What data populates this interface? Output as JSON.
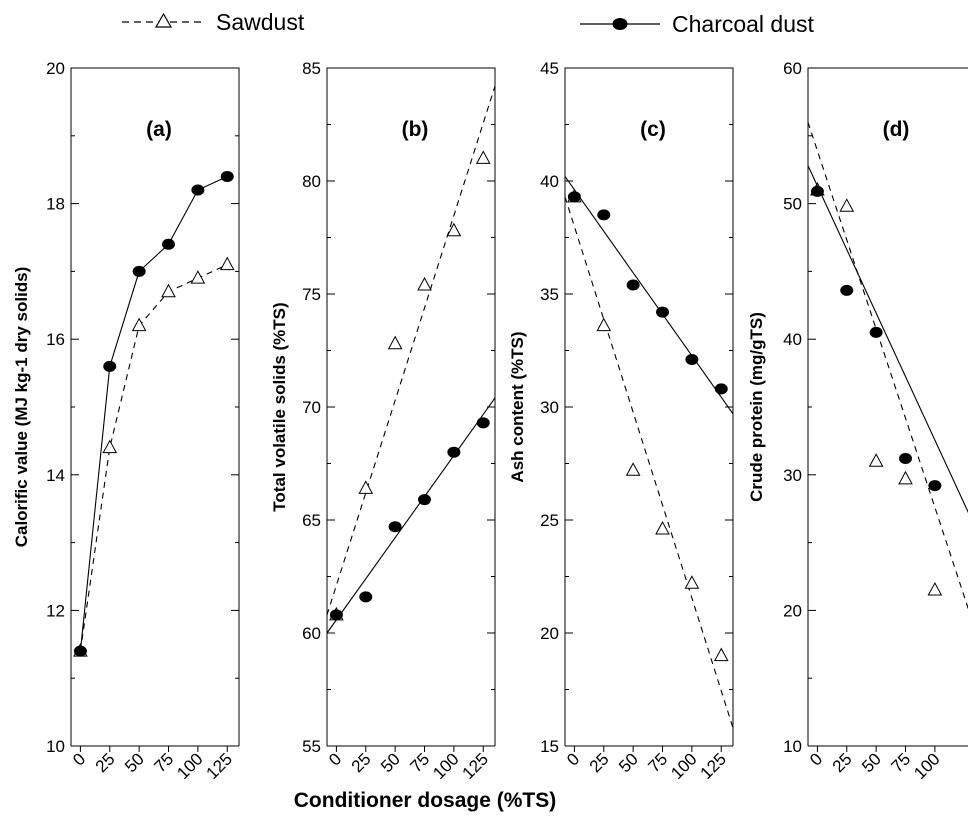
{
  "legend": {
    "sawdust": "Sawdust",
    "charcoal": "Charcoal dust"
  },
  "xlabel_shared": "Conditioner dosage (%TS)",
  "chart_data": [
    {
      "type": "line",
      "panel": "(a)",
      "ylabel": "Calorific value (MJ kg-1 dry solids)",
      "xlabel": "",
      "xlim": [
        -8,
        135
      ],
      "ylim": [
        10,
        20
      ],
      "xticks": [
        0,
        25,
        50,
        75,
        100,
        125
      ],
      "yticks": [
        10,
        12,
        14,
        16,
        18,
        20
      ],
      "categories": [
        0,
        25,
        50,
        75,
        100,
        125
      ],
      "series": [
        {
          "name": "Sawdust",
          "style": "dashed",
          "marker": "triangle",
          "x": [
            0,
            25,
            50,
            75,
            100,
            125
          ],
          "values": [
            11.4,
            14.4,
            16.2,
            16.7,
            16.9,
            17.1
          ],
          "fit": null
        },
        {
          "name": "Charcoal dust",
          "style": "solid",
          "marker": "circle",
          "x": [
            0,
            25,
            50,
            75,
            100,
            125
          ],
          "values": [
            11.4,
            15.6,
            17.0,
            17.4,
            18.2,
            18.4
          ],
          "fit": null
        }
      ]
    },
    {
      "type": "scatter",
      "panel": "(b)",
      "ylabel": "Total volatile solids (%TS)",
      "xlabel": "",
      "xlim": [
        -8,
        135
      ],
      "ylim": [
        55,
        85
      ],
      "xticks": [
        0,
        25,
        50,
        75,
        100,
        125
      ],
      "yticks": [
        55,
        60,
        65,
        70,
        75,
        80,
        85
      ],
      "categories": [
        0,
        25,
        50,
        75,
        100,
        125
      ],
      "series": [
        {
          "name": "Sawdust",
          "style": "dashed",
          "marker": "triangle",
          "x": [
            0,
            25,
            50,
            75,
            100,
            125
          ],
          "values": [
            60.8,
            66.4,
            72.8,
            75.4,
            77.8,
            81.0
          ],
          "fit": [
            60.8,
            84.2
          ]
        },
        {
          "name": "Charcoal dust",
          "style": "solid",
          "marker": "circle",
          "x": [
            0,
            25,
            50,
            75,
            100,
            125
          ],
          "values": [
            60.8,
            61.6,
            64.7,
            65.9,
            68.0,
            69.3
          ],
          "fit": [
            60.0,
            70.4
          ]
        }
      ]
    },
    {
      "type": "scatter",
      "panel": "(c)",
      "ylabel": "Ash content (%TS)",
      "xlabel": "",
      "xlim": [
        -8,
        135
      ],
      "ylim": [
        15,
        45
      ],
      "xticks": [
        0,
        25,
        50,
        75,
        100,
        125
      ],
      "yticks": [
        15,
        20,
        25,
        30,
        35,
        40,
        45
      ],
      "categories": [
        0,
        25,
        50,
        75,
        100,
        125
      ],
      "series": [
        {
          "name": "Sawdust",
          "style": "dashed",
          "marker": "triangle",
          "x": [
            0,
            25,
            50,
            75,
            100,
            125
          ],
          "values": [
            39.3,
            33.6,
            27.2,
            24.6,
            22.2,
            19.0
          ],
          "fit": [
            39.3,
            15.8
          ]
        },
        {
          "name": "Charcoal dust",
          "style": "solid",
          "marker": "circle",
          "x": [
            0,
            25,
            50,
            75,
            100,
            125
          ],
          "values": [
            39.3,
            38.5,
            35.4,
            34.2,
            32.1,
            30.8
          ],
          "fit": [
            40.2,
            29.7
          ]
        }
      ]
    },
    {
      "type": "scatter",
      "panel": "(d)",
      "ylabel": "Crude protein (mg/gTS)",
      "xlabel": "",
      "xlim": [
        -8,
        135
      ],
      "ylim": [
        10,
        60
      ],
      "xticks": [
        0,
        25,
        50,
        75,
        100
      ],
      "yticks": [
        10,
        20,
        30,
        40,
        50,
        60
      ],
      "categories": [
        0,
        25,
        50,
        75,
        100
      ],
      "series": [
        {
          "name": "Sawdust",
          "style": "dashed",
          "marker": "triangle",
          "x": [
            0,
            25,
            50,
            75,
            100
          ],
          "values": [
            51.0,
            49.8,
            31.0,
            29.7,
            21.5
          ],
          "fit": [
            56.0,
            18.4
          ]
        },
        {
          "name": "Charcoal dust",
          "style": "solid",
          "marker": "circle",
          "x": [
            0,
            25,
            50,
            75,
            100
          ],
          "values": [
            50.9,
            43.6,
            40.5,
            31.2,
            29.2
          ],
          "fit": [
            52.8,
            26.0
          ]
        }
      ]
    }
  ]
}
